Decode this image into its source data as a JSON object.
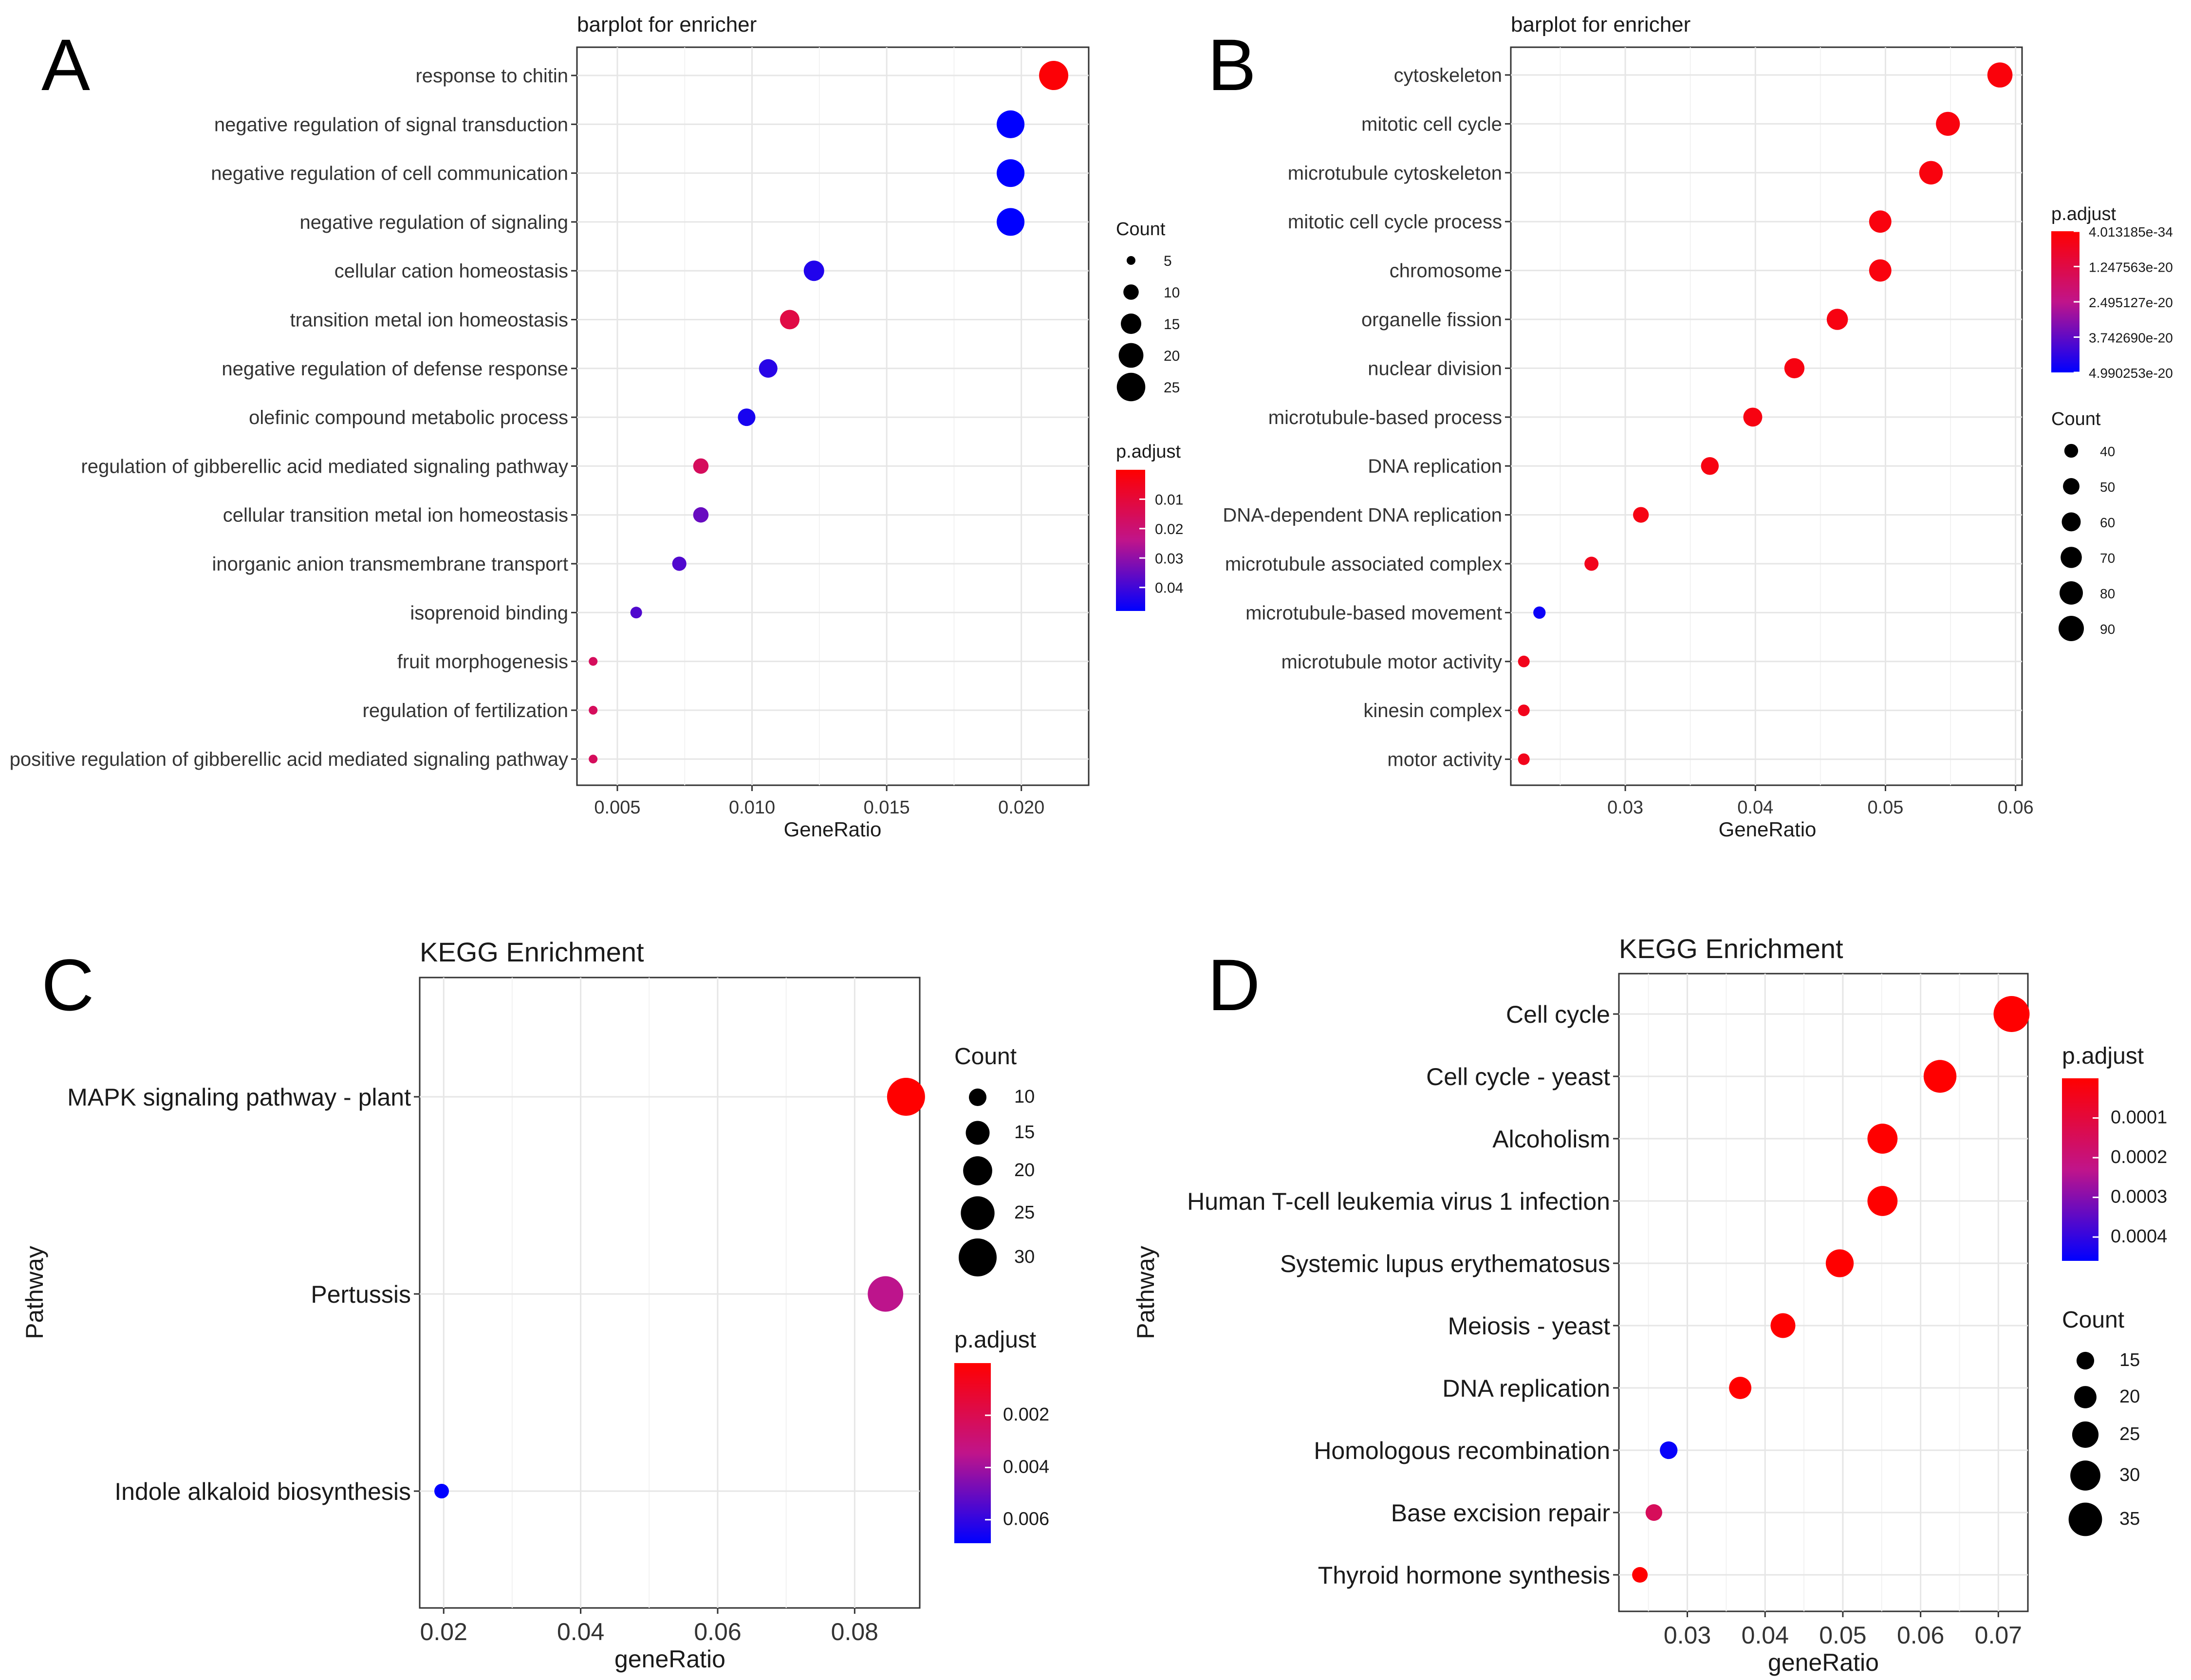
{
  "chart_data": [
    {
      "panel": "A",
      "type": "scatter",
      "title": "barplot for enricher",
      "xlabel": "GeneRatio",
      "ylabel": "",
      "xlim": [
        0.0035,
        0.0225
      ],
      "xticks": [
        0.005,
        0.01,
        0.015,
        0.02
      ],
      "xtick_labels": [
        "0.005",
        "0.010",
        "0.015",
        "0.020"
      ],
      "categories": [
        "response to chitin",
        "negative regulation of signal transduction",
        "negative regulation of cell communication",
        "negative regulation of signaling",
        "cellular cation homeostasis",
        "transition metal ion homeostasis",
        "negative regulation of defense response",
        "olefinic compound metabolic process",
        "regulation of gibberellic acid mediated signaling pathway",
        "cellular transition metal ion homeostasis",
        "inorganic anion transmembrane transport",
        "isoprenoid binding",
        "fruit morphogenesis",
        "regulation of fertilization",
        "positive regulation of gibberellic acid mediated signaling pathway"
      ],
      "x": [
        0.0212,
        0.0196,
        0.0196,
        0.0196,
        0.0123,
        0.0114,
        0.0106,
        0.0098,
        0.0081,
        0.0081,
        0.0073,
        0.0057,
        0.0041,
        0.0041,
        0.0041
      ],
      "count": [
        26,
        24,
        24,
        24,
        15,
        14,
        13,
        12,
        10,
        10,
        9,
        7,
        5,
        5,
        5
      ],
      "p_adjust": [
        0.001,
        0.048,
        0.048,
        0.048,
        0.044,
        0.012,
        0.043,
        0.045,
        0.016,
        0.035,
        0.038,
        0.038,
        0.016,
        0.016,
        0.016
      ],
      "size_legend": {
        "title": "Count",
        "values": [
          5,
          10,
          15,
          20,
          25
        ],
        "labels": [
          "5",
          "10",
          "15",
          "20",
          "25"
        ]
      },
      "color_legend": {
        "title": "p.adjust",
        "min": 0.0,
        "max": 0.048,
        "ticks": [
          0.01,
          0.02,
          0.03,
          0.04
        ],
        "labels": [
          "0.01",
          "0.02",
          "0.03",
          "0.04"
        ]
      }
    },
    {
      "panel": "B",
      "type": "scatter",
      "title": "barplot for enricher",
      "xlabel": "GeneRatio",
      "ylabel": "",
      "xlim": [
        0.0212,
        0.0605
      ],
      "xticks": [
        0.03,
        0.04,
        0.05,
        0.06
      ],
      "xtick_labels": [
        "0.03",
        "0.04",
        "0.05",
        "0.06"
      ],
      "categories": [
        "cytoskeleton",
        "mitotic cell cycle",
        "microtubule cytoskeleton",
        "mitotic cell cycle process",
        "chromosome",
        "organelle fission",
        "nuclear division",
        "microtubule-based process",
        "DNA replication",
        "DNA-dependent DNA replication",
        "microtubule associated complex",
        "microtubule-based movement",
        "microtubule motor activity",
        "kinesin complex",
        "motor activity"
      ],
      "x": [
        0.0588,
        0.0548,
        0.0535,
        0.0496,
        0.0496,
        0.0463,
        0.043,
        0.0398,
        0.0365,
        0.0312,
        0.0274,
        0.0234,
        0.0222,
        0.0222,
        0.0222
      ],
      "count": [
        89,
        83,
        81,
        75,
        75,
        70,
        65,
        60,
        55,
        47,
        41,
        35,
        33,
        33,
        33
      ],
      "p_adjust": [
        0.04,
        0.05,
        0.05,
        0.05,
        0.05,
        0.06,
        0.06,
        0.06,
        0.06,
        0.07,
        0.1,
        0.97,
        0.1,
        0.1,
        0.1
      ],
      "p_adjust_scale": "relative (0 = 4.013185e-34, 1 = 4.990253e-20)",
      "size_legend": {
        "title": "Count",
        "values": [
          40,
          50,
          60,
          70,
          80,
          90
        ],
        "labels": [
          "40",
          "50",
          "60",
          "70",
          "80",
          "90"
        ]
      },
      "color_legend": {
        "title": "p.adjust",
        "min": 0.0,
        "max": 1.0,
        "ticks": [
          0.0,
          0.25,
          0.5,
          0.75,
          1.0
        ],
        "labels": [
          "4.013185e-34",
          "1.247563e-20",
          "2.495127e-20",
          "3.742690e-20",
          "4.990253e-20"
        ]
      }
    },
    {
      "panel": "C",
      "type": "scatter",
      "title": "KEGG Enrichment",
      "xlabel": "geneRatio",
      "ylabel": "Pathway",
      "xlim": [
        0.0165,
        0.0895
      ],
      "xticks": [
        0.02,
        0.04,
        0.06,
        0.08
      ],
      "xtick_labels": [
        "0.02",
        "0.04",
        "0.06",
        "0.08"
      ],
      "categories": [
        "MAPK signaling pathway - plant",
        "Pertussis",
        "Indole alkaloid biosynthesis"
      ],
      "x": [
        0.0875,
        0.0845,
        0.0197
      ],
      "count": [
        30,
        27,
        8
      ],
      "p_adjust": [
        0.0,
        0.0035,
        0.0069
      ],
      "size_legend": {
        "title": "Count",
        "values": [
          10,
          15,
          20,
          25,
          30
        ],
        "labels": [
          "10",
          "15",
          "20",
          "25",
          "30"
        ]
      },
      "color_legend": {
        "title": "p.adjust",
        "min": 0.0,
        "max": 0.0069,
        "ticks": [
          0.002,
          0.004,
          0.006
        ],
        "labels": [
          "0.002",
          "0.004",
          "0.006"
        ]
      }
    },
    {
      "panel": "D",
      "type": "scatter",
      "title": "KEGG Enrichment",
      "xlabel": "geneRatio",
      "ylabel": "Pathway",
      "xlim": [
        0.0212,
        0.0738
      ],
      "xticks": [
        0.03,
        0.04,
        0.05,
        0.06,
        0.07
      ],
      "xtick_labels": [
        "0.03",
        "0.04",
        "0.05",
        "0.06",
        "0.07"
      ],
      "categories": [
        "Cell cycle",
        "Cell cycle - yeast",
        "Alcoholism",
        "Human T-cell leukemia virus 1 infection",
        "Systemic lupus erythematosus",
        "Meiosis - yeast",
        "DNA replication",
        "Homologous recombination",
        "Base excision repair",
        "Thyroid hormone synthesis"
      ],
      "x": [
        0.0717,
        0.0625,
        0.0551,
        0.0551,
        0.0496,
        0.0423,
        0.0368,
        0.0276,
        0.0257,
        0.0239
      ],
      "count": [
        39,
        34,
        30,
        30,
        27,
        23,
        20,
        15,
        14,
        13
      ],
      "p_adjust": [
        0.0,
        0.0,
        0.0,
        0.0,
        0.0,
        0.0,
        0.0,
        0.00045,
        0.00015,
        0.0
      ],
      "size_legend": {
        "title": "Count",
        "values": [
          15,
          20,
          25,
          30,
          35
        ],
        "labels": [
          "15",
          "20",
          "25",
          "30",
          "35"
        ]
      },
      "color_legend": {
        "title": "p.adjust",
        "min": 0.0,
        "max": 0.00046,
        "ticks": [
          0.0001,
          0.0002,
          0.0003,
          0.0004
        ],
        "labels": [
          "0.0001",
          "0.0002",
          "0.0003",
          "0.0004"
        ]
      }
    }
  ],
  "panel_labels": [
    "A",
    "B",
    "C",
    "D"
  ]
}
